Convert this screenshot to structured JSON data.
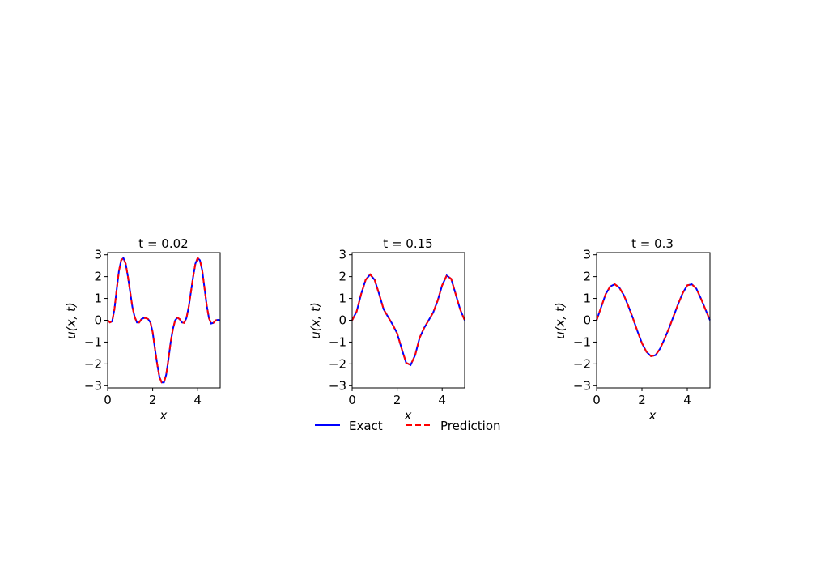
{
  "figure": {
    "legend": [
      {
        "label": "Exact",
        "color": "#0000ff",
        "style": "solid"
      },
      {
        "label": "Prediction",
        "color": "#ff0000",
        "style": "dashed"
      }
    ]
  },
  "chart_data": [
    {
      "type": "line",
      "title": "t = 0.02",
      "xlabel": "x",
      "ylabel": "u(x, t)",
      "xlim": [
        0,
        5
      ],
      "ylim": [
        -3.1,
        3.1
      ],
      "xticks": [
        "0",
        "2",
        "4"
      ],
      "yticks": [
        "3",
        "2",
        "1",
        "0",
        "−1",
        "−2",
        "−3"
      ],
      "series": [
        {
          "name": "Exact",
          "color": "#0000ff",
          "style": "solid",
          "x": [
            0,
            0.1,
            0.2,
            0.3,
            0.4,
            0.5,
            0.6,
            0.7,
            0.8,
            0.9,
            1.0,
            1.1,
            1.2,
            1.3,
            1.4,
            1.5,
            1.6,
            1.7,
            1.8,
            1.9,
            2.0,
            2.1,
            2.2,
            2.3,
            2.4,
            2.5,
            2.6,
            2.7,
            2.8,
            2.9,
            3.0,
            3.1,
            3.2,
            3.3,
            3.4,
            3.5,
            3.6,
            3.7,
            3.8,
            3.9,
            4.0,
            4.1,
            4.2,
            4.3,
            4.4,
            4.5,
            4.6,
            4.7,
            4.8,
            4.9,
            5.0
          ],
          "y": [
            0.0,
            -0.1,
            -0.05,
            0.5,
            1.4,
            2.25,
            2.75,
            2.85,
            2.6,
            2.0,
            1.3,
            0.6,
            0.15,
            -0.1,
            -0.1,
            0.05,
            0.1,
            0.1,
            0.05,
            -0.1,
            -0.55,
            -1.3,
            -2.0,
            -2.6,
            -2.85,
            -2.85,
            -2.5,
            -1.8,
            -1.0,
            -0.4,
            0.0,
            0.12,
            0.05,
            -0.1,
            -0.12,
            0.1,
            0.6,
            1.3,
            2.0,
            2.6,
            2.85,
            2.75,
            2.3,
            1.5,
            0.7,
            0.1,
            -0.15,
            -0.12,
            0.0,
            0.02,
            0.0
          ]
        },
        {
          "name": "Prediction",
          "color": "#ff0000",
          "style": "dashed",
          "x": [
            0,
            0.1,
            0.2,
            0.3,
            0.4,
            0.5,
            0.6,
            0.7,
            0.8,
            0.9,
            1.0,
            1.1,
            1.2,
            1.3,
            1.4,
            1.5,
            1.6,
            1.7,
            1.8,
            1.9,
            2.0,
            2.1,
            2.2,
            2.3,
            2.4,
            2.5,
            2.6,
            2.7,
            2.8,
            2.9,
            3.0,
            3.1,
            3.2,
            3.3,
            3.4,
            3.5,
            3.6,
            3.7,
            3.8,
            3.9,
            4.0,
            4.1,
            4.2,
            4.3,
            4.4,
            4.5,
            4.6,
            4.7,
            4.8,
            4.9,
            5.0
          ],
          "y": [
            0.0,
            -0.1,
            -0.05,
            0.5,
            1.4,
            2.25,
            2.75,
            2.85,
            2.6,
            2.0,
            1.3,
            0.6,
            0.15,
            -0.1,
            -0.1,
            0.05,
            0.1,
            0.1,
            0.05,
            -0.1,
            -0.55,
            -1.3,
            -2.0,
            -2.6,
            -2.85,
            -2.85,
            -2.5,
            -1.8,
            -1.0,
            -0.4,
            0.0,
            0.12,
            0.05,
            -0.1,
            -0.12,
            0.1,
            0.6,
            1.3,
            2.0,
            2.6,
            2.85,
            2.75,
            2.3,
            1.5,
            0.7,
            0.1,
            -0.15,
            -0.12,
            0.0,
            0.02,
            0.0
          ]
        }
      ]
    },
    {
      "type": "line",
      "title": "t = 0.15",
      "xlabel": "x",
      "ylabel": "u(x, t)",
      "xlim": [
        0,
        5
      ],
      "ylim": [
        -3.1,
        3.1
      ],
      "xticks": [
        "0",
        "2",
        "4"
      ],
      "yticks": [
        "3",
        "2",
        "1",
        "0",
        "−1",
        "−2",
        "−3"
      ],
      "series": [
        {
          "name": "Exact",
          "color": "#0000ff",
          "style": "solid",
          "x": [
            0,
            0.2,
            0.4,
            0.6,
            0.8,
            1.0,
            1.2,
            1.4,
            1.6,
            1.8,
            2.0,
            2.2,
            2.4,
            2.6,
            2.8,
            3.0,
            3.2,
            3.4,
            3.6,
            3.8,
            4.0,
            4.2,
            4.4,
            4.6,
            4.8,
            5.0
          ],
          "y": [
            0.0,
            0.4,
            1.2,
            1.85,
            2.1,
            1.85,
            1.2,
            0.5,
            0.15,
            -0.2,
            -0.6,
            -1.3,
            -1.95,
            -2.05,
            -1.6,
            -0.8,
            -0.35,
            0.0,
            0.35,
            0.9,
            1.6,
            2.05,
            1.9,
            1.2,
            0.5,
            0.0
          ]
        },
        {
          "name": "Prediction",
          "color": "#ff0000",
          "style": "dashed",
          "x": [
            0,
            0.2,
            0.4,
            0.6,
            0.8,
            1.0,
            1.2,
            1.4,
            1.6,
            1.8,
            2.0,
            2.2,
            2.4,
            2.6,
            2.8,
            3.0,
            3.2,
            3.4,
            3.6,
            3.8,
            4.0,
            4.2,
            4.4,
            4.6,
            4.8,
            5.0
          ],
          "y": [
            0.0,
            0.4,
            1.2,
            1.85,
            2.1,
            1.85,
            1.2,
            0.5,
            0.15,
            -0.2,
            -0.6,
            -1.3,
            -1.95,
            -2.05,
            -1.6,
            -0.8,
            -0.35,
            0.0,
            0.35,
            0.9,
            1.6,
            2.05,
            1.9,
            1.2,
            0.5,
            0.0
          ]
        }
      ]
    },
    {
      "type": "line",
      "title": "t = 0.3",
      "xlabel": "x",
      "ylabel": "u(x, t)",
      "xlim": [
        0,
        5
      ],
      "ylim": [
        -3.1,
        3.1
      ],
      "xticks": [
        "0",
        "2",
        "4"
      ],
      "yticks": [
        "3",
        "2",
        "1",
        "0",
        "−1",
        "−2",
        "−3"
      ],
      "series": [
        {
          "name": "Exact",
          "color": "#0000ff",
          "style": "solid",
          "x": [
            0,
            0.2,
            0.4,
            0.6,
            0.8,
            1.0,
            1.2,
            1.4,
            1.6,
            1.8,
            2.0,
            2.2,
            2.4,
            2.6,
            2.8,
            3.0,
            3.2,
            3.4,
            3.6,
            3.8,
            4.0,
            4.2,
            4.4,
            4.6,
            4.8,
            5.0
          ],
          "y": [
            0.0,
            0.6,
            1.2,
            1.55,
            1.65,
            1.5,
            1.15,
            0.65,
            0.1,
            -0.5,
            -1.05,
            -1.45,
            -1.65,
            -1.6,
            -1.3,
            -0.85,
            -0.35,
            0.2,
            0.75,
            1.25,
            1.6,
            1.65,
            1.45,
            1.0,
            0.5,
            0.0
          ]
        },
        {
          "name": "Prediction",
          "color": "#ff0000",
          "style": "dashed",
          "x": [
            0,
            0.2,
            0.4,
            0.6,
            0.8,
            1.0,
            1.2,
            1.4,
            1.6,
            1.8,
            2.0,
            2.2,
            2.4,
            2.6,
            2.8,
            3.0,
            3.2,
            3.4,
            3.6,
            3.8,
            4.0,
            4.2,
            4.4,
            4.6,
            4.8,
            5.0
          ],
          "y": [
            0.0,
            0.6,
            1.2,
            1.55,
            1.65,
            1.5,
            1.15,
            0.65,
            0.1,
            -0.5,
            -1.05,
            -1.45,
            -1.65,
            -1.6,
            -1.3,
            -0.85,
            -0.35,
            0.2,
            0.75,
            1.25,
            1.6,
            1.65,
            1.45,
            1.0,
            0.5,
            0.0
          ]
        }
      ]
    }
  ]
}
